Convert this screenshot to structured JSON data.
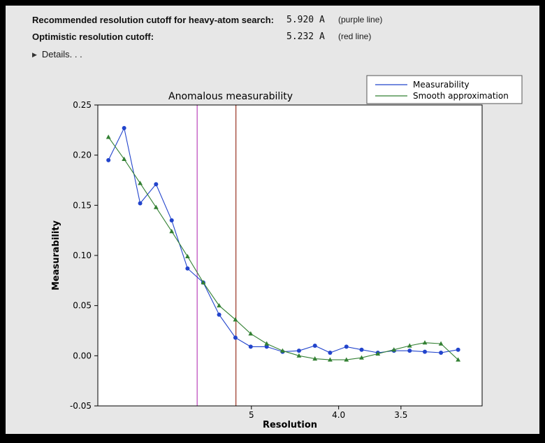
{
  "header": {
    "rows": [
      {
        "label": "Recommended resolution cutoff for heavy-atom search:",
        "value": "5.920 A",
        "note": "(purple line)"
      },
      {
        "label": "Optimistic resolution cutoff:",
        "value": "5.232 A",
        "note": "(red line)"
      }
    ],
    "details_label": "Details. . ."
  },
  "colors": {
    "frame": "#000000",
    "panel_bg": "#e7e7e7"
  },
  "chart_data": {
    "type": "line",
    "title": "Anomalous measurability",
    "xlabel": "Resolution",
    "ylabel": "Measurability",
    "ylim": [
      -0.05,
      0.25
    ],
    "yticks": [
      -0.05,
      0.0,
      0.05,
      0.1,
      0.15,
      0.2,
      0.25
    ],
    "grid": false,
    "legend_position": "upper right",
    "colors": {
      "plot_bg": "#ffffff",
      "axis": "#000000"
    },
    "x_axis": {
      "scale": "1_over_d_angstrom",
      "d_left": 8.93,
      "d_right": 3.01,
      "ticks": [
        {
          "d": 5.0,
          "label": "5"
        },
        {
          "d": 4.0,
          "label": "4.0"
        },
        {
          "d": 3.5,
          "label": "3.5"
        }
      ]
    },
    "vlines": [
      {
        "d": 5.92,
        "color": "#bb44bb",
        "name": "purple-cutoff"
      },
      {
        "d": 5.232,
        "color": "#993322",
        "name": "red-cutoff"
      }
    ],
    "series": [
      {
        "name": "Measurability",
        "color": "#2244cc",
        "marker": "circle",
        "d": [
          8.47,
          7.87,
          7.34,
          6.88,
          6.48,
          6.12,
          5.8,
          5.51,
          5.24,
          5.01,
          4.79,
          4.59,
          4.4,
          4.23,
          4.08,
          3.93,
          3.8,
          3.67,
          3.55,
          3.44,
          3.34,
          3.24,
          3.14
        ],
        "values": [
          0.195,
          0.227,
          0.152,
          0.171,
          0.135,
          0.087,
          0.073,
          0.041,
          0.018,
          0.009,
          0.009,
          0.004,
          0.005,
          0.01,
          0.003,
          0.009,
          0.006,
          0.003,
          0.005,
          0.005,
          0.004,
          0.003,
          0.006
        ]
      },
      {
        "name": "Smooth approximation",
        "color": "#338033",
        "marker": "triangle",
        "d": [
          8.47,
          7.87,
          7.34,
          6.88,
          6.48,
          6.12,
          5.8,
          5.51,
          5.24,
          5.01,
          4.79,
          4.59,
          4.4,
          4.23,
          4.08,
          3.93,
          3.8,
          3.67,
          3.55,
          3.44,
          3.34,
          3.24,
          3.14
        ],
        "values": [
          0.218,
          0.196,
          0.172,
          0.148,
          0.124,
          0.099,
          0.073,
          0.05,
          0.036,
          0.022,
          0.012,
          0.005,
          0.0,
          -0.003,
          -0.004,
          -0.004,
          -0.002,
          0.002,
          0.006,
          0.01,
          0.013,
          0.012,
          -0.004
        ]
      }
    ]
  }
}
